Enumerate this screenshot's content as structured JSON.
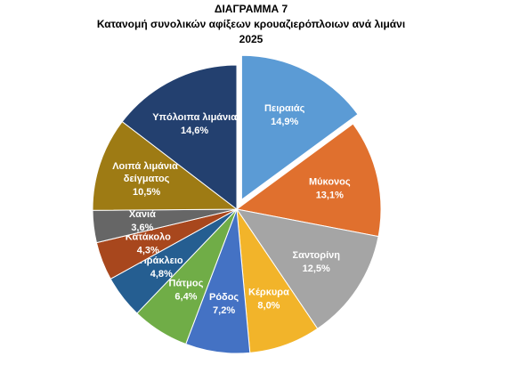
{
  "chart_data": {
    "type": "pie",
    "title": [
      "ΔΙΑΓΡΑΜΜΑ 7",
      "Κατανομή συνολικών αφίξεων κρουαζιερόπλοιων ανά λιμάνι",
      "2025"
    ],
    "categories": [
      "Πειραιάς",
      "Μύκονος",
      "Σαντορίνη",
      "Κέρκυρα",
      "Ρόδος",
      "Πάτμος",
      "Ηράκλειο",
      "Κατάκολο",
      "Χανιά",
      "Λοιπά λιμάνια δείγματος",
      "Υπόλοιπα λιμάνια"
    ],
    "values": [
      14.9,
      13.1,
      12.5,
      8.0,
      7.2,
      6.4,
      4.8,
      4.3,
      3.6,
      10.5,
      14.6
    ],
    "value_labels": [
      "14,9%",
      "13,1%",
      "12,5%",
      "8,0%",
      "7,2%",
      "6,4%",
      "4,8%",
      "4,3%",
      "3,6%",
      "10,5%",
      "14,6%"
    ],
    "colors": [
      "#5b9bd5",
      "#e0702e",
      "#a5a5a5",
      "#f2b42a",
      "#4472c4",
      "#70ad47",
      "#255e91",
      "#a8471d",
      "#666666",
      "#9e7b14",
      "#23406f"
    ],
    "exploded": [
      0
    ]
  }
}
